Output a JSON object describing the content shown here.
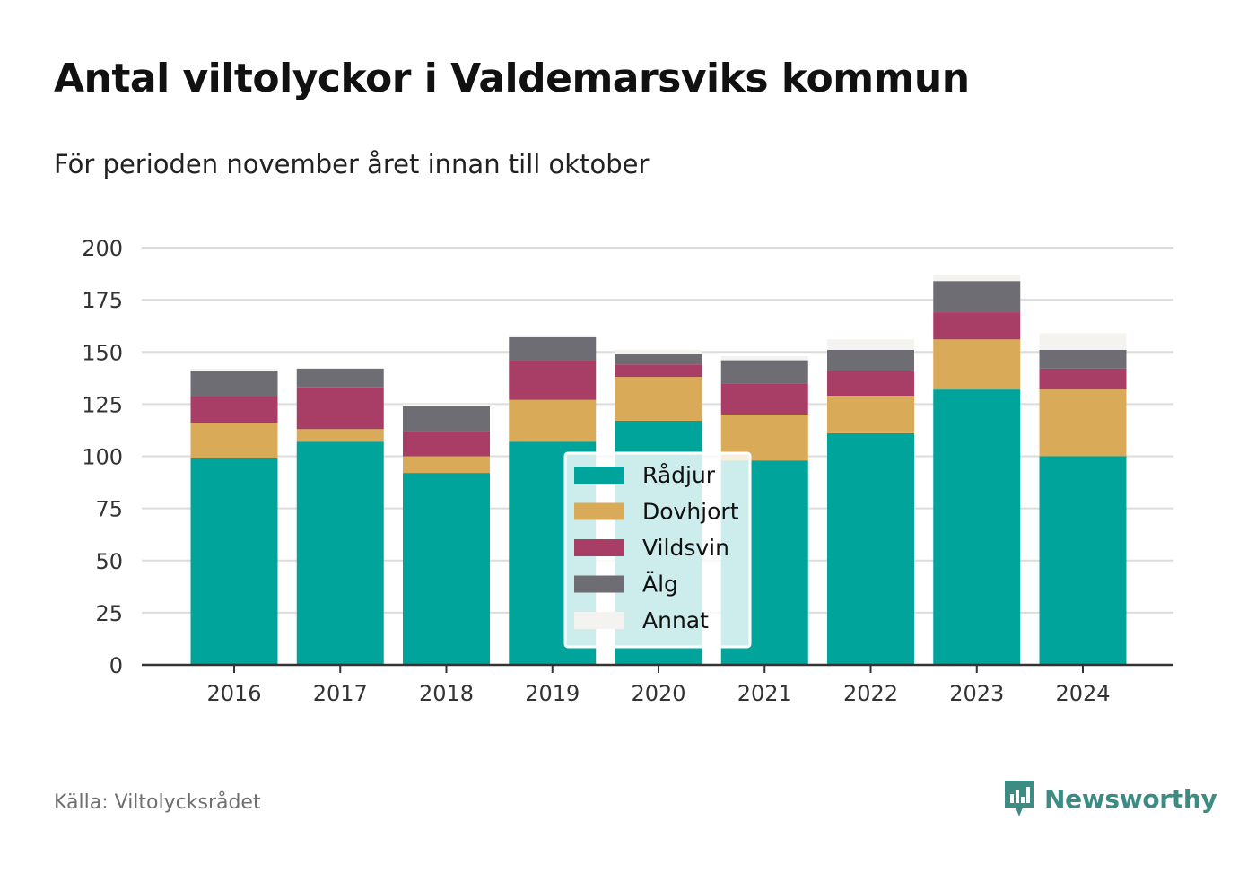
{
  "title": "Antal viltolyckor i Valdemarsviks kommun",
  "subtitle": "För perioden november året innan till oktober",
  "source": "Källa: Viltolycksrådet",
  "brand": {
    "name": "Newsworthy",
    "icon": "newsworthy-logo-icon",
    "color": "#3c8c84"
  },
  "chart_data": {
    "type": "bar",
    "stacked": true,
    "categories": [
      "2016",
      "2017",
      "2018",
      "2019",
      "2020",
      "2021",
      "2022",
      "2023",
      "2024"
    ],
    "series": [
      {
        "name": "Rådjur",
        "color": "#00a49a",
        "values": [
          99,
          107,
          92,
          107,
          117,
          98,
          111,
          132,
          100
        ]
      },
      {
        "name": "Dovhjort",
        "color": "#d9aa57",
        "values": [
          17,
          6,
          8,
          20,
          21,
          22,
          18,
          24,
          32
        ]
      },
      {
        "name": "Vildsvin",
        "color": "#a83e66",
        "values": [
          13,
          20,
          12,
          19,
          6,
          15,
          12,
          13,
          10
        ]
      },
      {
        "name": "Älg",
        "color": "#6e6d73",
        "values": [
          12,
          9,
          12,
          11,
          5,
          11,
          10,
          15,
          9
        ]
      },
      {
        "name": "Annat",
        "color": "#f4f3ef",
        "values": [
          1,
          0,
          1,
          1,
          2,
          2,
          5,
          3,
          8
        ]
      }
    ],
    "ylim": [
      0,
      200
    ],
    "yticks": [
      0,
      25,
      50,
      75,
      100,
      125,
      150,
      175,
      200
    ],
    "xlabel": "",
    "ylabel": "",
    "grid": true,
    "legend_position": "center"
  }
}
